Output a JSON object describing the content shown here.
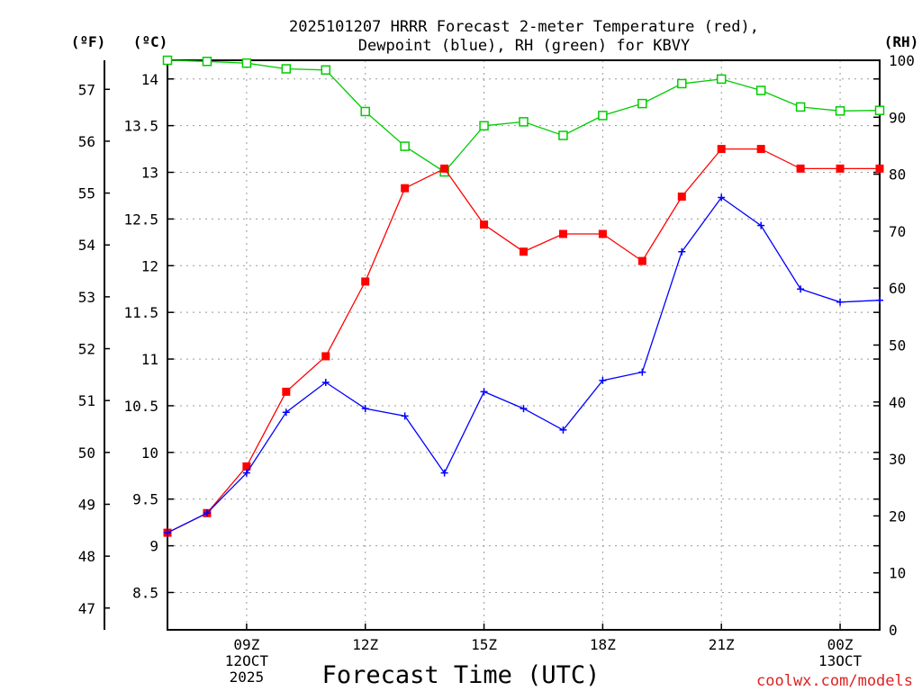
{
  "title_line1": "2025101207 HRRR Forecast 2-meter Temperature (red),",
  "title_line2": "Dewpoint (blue), RH (green) for KBVY",
  "units": {
    "fahrenheit": "(ºF)",
    "celsius": "(ºC)",
    "rh": "(RH)"
  },
  "x_axis_label": "Forecast Time (UTC)",
  "credit": "coolwx.com/models",
  "colors": {
    "temperature": "#ff0000",
    "dewpoint": "#0000ff",
    "rh": "#00cc00",
    "grid": "#999999"
  },
  "chart_data": {
    "type": "line",
    "title": "2025101207 HRRR Forecast 2-meter Temperature (red), Dewpoint (blue), RH (green) for KBVY",
    "xlabel": "Forecast Time (UTC)",
    "x_hours": [
      7,
      8,
      9,
      10,
      11,
      12,
      13,
      14,
      15,
      16,
      17,
      18,
      19,
      20,
      21,
      22,
      23,
      24,
      25
    ],
    "x_range": [
      7,
      25
    ],
    "x_ticks": [
      {
        "hour": 9,
        "lines": [
          "09Z",
          "12OCT",
          "2025"
        ]
      },
      {
        "hour": 12,
        "lines": [
          "12Z"
        ]
      },
      {
        "hour": 15,
        "lines": [
          "15Z"
        ]
      },
      {
        "hour": 18,
        "lines": [
          "18Z"
        ]
      },
      {
        "hour": 21,
        "lines": [
          "21Z"
        ]
      },
      {
        "hour": 24,
        "lines": [
          "00Z",
          "13OCT"
        ]
      }
    ],
    "left_axis_celsius": {
      "range": [
        8.1,
        14.2
      ],
      "ticks": [
        8.5,
        9,
        9.5,
        10,
        10.5,
        11,
        11.5,
        12,
        12.5,
        13,
        13.5,
        14
      ],
      "tick_labels": [
        "8.5",
        "9",
        "9.5",
        "10",
        "10.5",
        "11",
        "11.5",
        "12",
        "12.5",
        "13",
        "13.5",
        "14"
      ]
    },
    "outer_axis_fahrenheit": {
      "ticks": [
        47,
        48,
        49,
        50,
        51,
        52,
        53,
        54,
        55,
        56,
        57
      ],
      "tick_labels": [
        "47",
        "48",
        "49",
        "50",
        "51",
        "52",
        "53",
        "54",
        "55",
        "56",
        "57"
      ]
    },
    "right_axis_rh": {
      "range": [
        0,
        100
      ],
      "ticks": [
        0,
        10,
        20,
        30,
        40,
        50,
        60,
        70,
        80,
        90,
        100
      ],
      "tick_labels": [
        "0",
        "10",
        "20",
        "30",
        "40",
        "50",
        "60",
        "70",
        "80",
        "90",
        "100"
      ]
    },
    "series": [
      {
        "name": "Temperature",
        "axis": "celsius",
        "marker": "filled-square",
        "values": [
          9.14,
          9.35,
          9.85,
          10.65,
          11.03,
          11.83,
          12.83,
          13.04,
          12.44,
          12.15,
          12.34,
          12.34,
          12.05,
          12.74,
          13.25,
          13.25,
          13.04,
          13.04,
          13.04
        ]
      },
      {
        "name": "Dewpoint",
        "axis": "celsius",
        "marker": "plus",
        "values": [
          9.14,
          9.35,
          9.78,
          10.43,
          10.75,
          10.47,
          10.39,
          9.78,
          10.65,
          10.47,
          10.24,
          10.77,
          10.86,
          12.15,
          12.73,
          12.43,
          11.75,
          11.61,
          11.63
        ]
      },
      {
        "name": "RH",
        "axis": "rh",
        "marker": "open-square",
        "values": [
          100,
          99.8,
          99.5,
          98.5,
          98.3,
          91,
          84.9,
          80.4,
          88.5,
          89.2,
          86.8,
          90.3,
          92.4,
          95.9,
          96.7,
          94.7,
          91.8,
          91.1,
          91.2
        ]
      }
    ]
  }
}
